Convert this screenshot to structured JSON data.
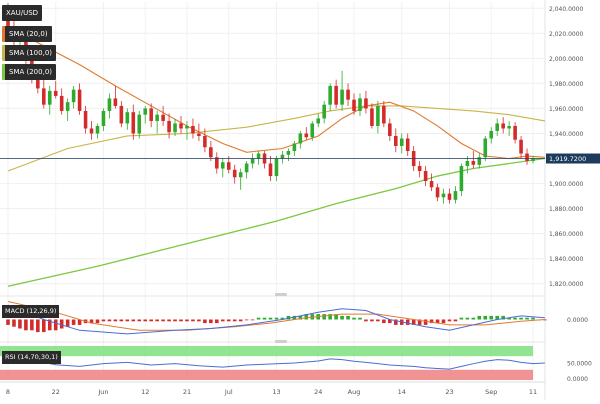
{
  "symbol": "XAU/USD",
  "indicators": {
    "sma20": "SMA (20,0)",
    "sma100": "SMA (100,0)",
    "sma200": "SMA (200,0)",
    "macd": "MACD (12,26,9)",
    "rsi": "RSI (14,70,30,1)"
  },
  "current_price_label": "1,919.7200",
  "macd_zero_label": "0.0000",
  "rsi_labels": [
    "50.0000",
    "0.0000"
  ],
  "colors": {
    "bull": "#2eaa2e",
    "bear": "#d42a2a",
    "sma20": "#e07a2e",
    "sma100": "#c9b545",
    "sma200": "#7ac943",
    "price_line": "#1d3b5c",
    "macd_line": "#4a6cd4",
    "signal_line": "#e07a2e",
    "rsi_line": "#4a6cd4",
    "rsi_upper": "#7ee07e",
    "rsi_lower": "#f08080"
  },
  "chart_data": {
    "type": "candlestick",
    "title": "XAU/USD",
    "x_ticks": [
      "8",
      "22",
      "Jun",
      "12",
      "21",
      "Jul",
      "13",
      "24",
      "Aug",
      "14",
      "23",
      "Sep",
      "11"
    ],
    "y_ticks": [
      "2,040.0000",
      "2,020.0000",
      "2,000.0000",
      "1,980.0000",
      "1,960.0000",
      "1,940.0000",
      "1,920.0000",
      "1,900.0000",
      "1,880.0000",
      "1,860.0000",
      "1,840.0000",
      "1,820.0000"
    ],
    "ylim": [
      1815,
      2045
    ],
    "candles": [
      {
        "o": 2036,
        "h": 2044,
        "l": 2020,
        "c": 2025
      },
      {
        "o": 2025,
        "h": 2032,
        "l": 2010,
        "c": 2014
      },
      {
        "o": 2014,
        "h": 2022,
        "l": 2002,
        "c": 2017
      },
      {
        "o": 2017,
        "h": 2020,
        "l": 1995,
        "c": 1998
      },
      {
        "o": 1998,
        "h": 2005,
        "l": 1980,
        "c": 1983
      },
      {
        "o": 1983,
        "h": 1990,
        "l": 1972,
        "c": 1976
      },
      {
        "o": 1976,
        "h": 1985,
        "l": 1960,
        "c": 1963
      },
      {
        "o": 1963,
        "h": 1978,
        "l": 1955,
        "c": 1974
      },
      {
        "o": 1974,
        "h": 1982,
        "l": 1968,
        "c": 1970
      },
      {
        "o": 1970,
        "h": 1976,
        "l": 1955,
        "c": 1958
      },
      {
        "o": 1958,
        "h": 1968,
        "l": 1950,
        "c": 1965
      },
      {
        "o": 1965,
        "h": 1978,
        "l": 1960,
        "c": 1975
      },
      {
        "o": 1975,
        "h": 1980,
        "l": 1955,
        "c": 1958
      },
      {
        "o": 1958,
        "h": 1962,
        "l": 1940,
        "c": 1944
      },
      {
        "o": 1944,
        "h": 1950,
        "l": 1935,
        "c": 1940
      },
      {
        "o": 1940,
        "h": 1948,
        "l": 1936,
        "c": 1946
      },
      {
        "o": 1946,
        "h": 1960,
        "l": 1942,
        "c": 1958
      },
      {
        "o": 1958,
        "h": 1972,
        "l": 1952,
        "c": 1968
      },
      {
        "o": 1968,
        "h": 1978,
        "l": 1960,
        "c": 1962
      },
      {
        "o": 1962,
        "h": 1966,
        "l": 1945,
        "c": 1948
      },
      {
        "o": 1948,
        "h": 1960,
        "l": 1943,
        "c": 1957
      },
      {
        "o": 1957,
        "h": 1963,
        "l": 1935,
        "c": 1940
      },
      {
        "o": 1940,
        "h": 1958,
        "l": 1936,
        "c": 1955
      },
      {
        "o": 1955,
        "h": 1962,
        "l": 1948,
        "c": 1960
      },
      {
        "o": 1960,
        "h": 1964,
        "l": 1945,
        "c": 1950
      },
      {
        "o": 1950,
        "h": 1958,
        "l": 1940,
        "c": 1955
      },
      {
        "o": 1955,
        "h": 1962,
        "l": 1946,
        "c": 1950
      },
      {
        "o": 1950,
        "h": 1956,
        "l": 1936,
        "c": 1941
      },
      {
        "o": 1941,
        "h": 1952,
        "l": 1938,
        "c": 1948
      },
      {
        "o": 1948,
        "h": 1954,
        "l": 1940,
        "c": 1944
      },
      {
        "o": 1944,
        "h": 1950,
        "l": 1935,
        "c": 1946
      },
      {
        "o": 1946,
        "h": 1952,
        "l": 1936,
        "c": 1940
      },
      {
        "o": 1940,
        "h": 1948,
        "l": 1934,
        "c": 1938
      },
      {
        "o": 1938,
        "h": 1944,
        "l": 1925,
        "c": 1929
      },
      {
        "o": 1929,
        "h": 1934,
        "l": 1918,
        "c": 1921
      },
      {
        "o": 1921,
        "h": 1925,
        "l": 1908,
        "c": 1912
      },
      {
        "o": 1912,
        "h": 1920,
        "l": 1905,
        "c": 1917
      },
      {
        "o": 1917,
        "h": 1922,
        "l": 1908,
        "c": 1911
      },
      {
        "o": 1911,
        "h": 1915,
        "l": 1900,
        "c": 1905
      },
      {
        "o": 1905,
        "h": 1912,
        "l": 1895,
        "c": 1909
      },
      {
        "o": 1909,
        "h": 1918,
        "l": 1904,
        "c": 1916
      },
      {
        "o": 1916,
        "h": 1924,
        "l": 1912,
        "c": 1920
      },
      {
        "o": 1920,
        "h": 1926,
        "l": 1915,
        "c": 1924
      },
      {
        "o": 1924,
        "h": 1926,
        "l": 1912,
        "c": 1916
      },
      {
        "o": 1916,
        "h": 1922,
        "l": 1902,
        "c": 1906
      },
      {
        "o": 1906,
        "h": 1922,
        "l": 1902,
        "c": 1920
      },
      {
        "o": 1920,
        "h": 1926,
        "l": 1916,
        "c": 1923
      },
      {
        "o": 1923,
        "h": 1928,
        "l": 1918,
        "c": 1926
      },
      {
        "o": 1926,
        "h": 1934,
        "l": 1922,
        "c": 1932
      },
      {
        "o": 1932,
        "h": 1942,
        "l": 1928,
        "c": 1940
      },
      {
        "o": 1940,
        "h": 1945,
        "l": 1935,
        "c": 1937
      },
      {
        "o": 1937,
        "h": 1950,
        "l": 1934,
        "c": 1948
      },
      {
        "o": 1948,
        "h": 1956,
        "l": 1945,
        "c": 1952
      },
      {
        "o": 1952,
        "h": 1966,
        "l": 1948,
        "c": 1963
      },
      {
        "o": 1963,
        "h": 1980,
        "l": 1958,
        "c": 1978
      },
      {
        "o": 1978,
        "h": 1983,
        "l": 1960,
        "c": 1963
      },
      {
        "o": 1963,
        "h": 1990,
        "l": 1958,
        "c": 1975
      },
      {
        "o": 1975,
        "h": 1980,
        "l": 1962,
        "c": 1967
      },
      {
        "o": 1967,
        "h": 1972,
        "l": 1955,
        "c": 1958
      },
      {
        "o": 1958,
        "h": 1972,
        "l": 1954,
        "c": 1968
      },
      {
        "o": 1968,
        "h": 1974,
        "l": 1956,
        "c": 1960
      },
      {
        "o": 1960,
        "h": 1964,
        "l": 1944,
        "c": 1946
      },
      {
        "o": 1946,
        "h": 1966,
        "l": 1940,
        "c": 1962
      },
      {
        "o": 1962,
        "h": 1966,
        "l": 1945,
        "c": 1948
      },
      {
        "o": 1948,
        "h": 1952,
        "l": 1934,
        "c": 1938
      },
      {
        "o": 1938,
        "h": 1944,
        "l": 1925,
        "c": 1930
      },
      {
        "o": 1930,
        "h": 1940,
        "l": 1924,
        "c": 1936
      },
      {
        "o": 1936,
        "h": 1940,
        "l": 1922,
        "c": 1926
      },
      {
        "o": 1926,
        "h": 1930,
        "l": 1910,
        "c": 1914
      },
      {
        "o": 1914,
        "h": 1918,
        "l": 1905,
        "c": 1910
      },
      {
        "o": 1910,
        "h": 1914,
        "l": 1898,
        "c": 1902
      },
      {
        "o": 1902,
        "h": 1908,
        "l": 1894,
        "c": 1897
      },
      {
        "o": 1897,
        "h": 1900,
        "l": 1886,
        "c": 1889
      },
      {
        "o": 1889,
        "h": 1896,
        "l": 1884,
        "c": 1892
      },
      {
        "o": 1892,
        "h": 1896,
        "l": 1884,
        "c": 1887
      },
      {
        "o": 1887,
        "h": 1898,
        "l": 1884,
        "c": 1894
      },
      {
        "o": 1894,
        "h": 1916,
        "l": 1890,
        "c": 1914
      },
      {
        "o": 1914,
        "h": 1922,
        "l": 1908,
        "c": 1918
      },
      {
        "o": 1918,
        "h": 1926,
        "l": 1912,
        "c": 1915
      },
      {
        "o": 1915,
        "h": 1924,
        "l": 1912,
        "c": 1921
      },
      {
        "o": 1921,
        "h": 1938,
        "l": 1918,
        "c": 1936
      },
      {
        "o": 1936,
        "h": 1945,
        "l": 1932,
        "c": 1942
      },
      {
        "o": 1942,
        "h": 1952,
        "l": 1938,
        "c": 1948
      },
      {
        "o": 1948,
        "h": 1953,
        "l": 1940,
        "c": 1944
      },
      {
        "o": 1944,
        "h": 1950,
        "l": 1938,
        "c": 1946
      },
      {
        "o": 1946,
        "h": 1949,
        "l": 1932,
        "c": 1935
      },
      {
        "o": 1935,
        "h": 1938,
        "l": 1920,
        "c": 1924
      },
      {
        "o": 1924,
        "h": 1928,
        "l": 1915,
        "c": 1918
      },
      {
        "o": 1918,
        "h": 1922,
        "l": 1916,
        "c": 1920
      }
    ],
    "sma20": [
      [
        0,
        2025
      ],
      [
        6,
        2010
      ],
      [
        12,
        1995
      ],
      [
        18,
        1978
      ],
      [
        24,
        1962
      ],
      [
        30,
        1946
      ],
      [
        36,
        1932
      ],
      [
        40,
        1925
      ],
      [
        46,
        1928
      ],
      [
        52,
        1938
      ],
      [
        56,
        1952
      ],
      [
        60,
        1962
      ],
      [
        64,
        1965
      ],
      [
        68,
        1958
      ],
      [
        72,
        1946
      ],
      [
        76,
        1932
      ],
      [
        80,
        1922
      ],
      [
        84,
        1920
      ],
      [
        87,
        1922
      ],
      [
        90,
        1921
      ]
    ],
    "sma100": [
      [
        0,
        1910
      ],
      [
        10,
        1928
      ],
      [
        20,
        1938
      ],
      [
        30,
        1940
      ],
      [
        40,
        1945
      ],
      [
        48,
        1952
      ],
      [
        54,
        1958
      ],
      [
        60,
        1962
      ],
      [
        66,
        1962
      ],
      [
        72,
        1960
      ],
      [
        78,
        1958
      ],
      [
        84,
        1955
      ],
      [
        90,
        1950
      ]
    ],
    "sma200": [
      [
        0,
        1818
      ],
      [
        15,
        1834
      ],
      [
        30,
        1852
      ],
      [
        45,
        1870
      ],
      [
        55,
        1884
      ],
      [
        65,
        1896
      ],
      [
        72,
        1906
      ],
      [
        78,
        1912
      ],
      [
        84,
        1916
      ],
      [
        90,
        1920
      ]
    ],
    "macd_hist": [
      -3,
      -4,
      -5,
      -6,
      -6,
      -7,
      -7,
      -6,
      -6,
      -5,
      -4,
      -3,
      -3,
      -2,
      -2,
      -2,
      -1,
      -1,
      -1,
      -1,
      -1,
      -1,
      -1,
      -1,
      -1,
      -1,
      -1,
      -1,
      -1,
      -1,
      -1,
      -1,
      -1,
      -2,
      -2,
      -2,
      -1,
      -1,
      -1,
      -1,
      0,
      0,
      1,
      1,
      1,
      1,
      1,
      2,
      2,
      2,
      3,
      3,
      3,
      3,
      3,
      3,
      2,
      2,
      1,
      1,
      -1,
      -1,
      -1,
      -2,
      -2,
      -3,
      -3,
      -3,
      -3,
      -3,
      -3,
      -2,
      -2,
      -2,
      -1,
      -1,
      1,
      1,
      1,
      2,
      2,
      2,
      2,
      2,
      1,
      1,
      1,
      1,
      1,
      0,
      0
    ],
    "macd_line": [
      [
        0,
        8
      ],
      [
        6,
        0
      ],
      [
        12,
        -6
      ],
      [
        20,
        -8
      ],
      [
        28,
        -6
      ],
      [
        34,
        -5
      ],
      [
        40,
        -3
      ],
      [
        46,
        0
      ],
      [
        52,
        4
      ],
      [
        56,
        6
      ],
      [
        60,
        5
      ],
      [
        64,
        0
      ],
      [
        70,
        -4
      ],
      [
        74,
        -6
      ],
      [
        78,
        -3
      ],
      [
        82,
        0
      ],
      [
        86,
        2
      ],
      [
        90,
        1
      ]
    ],
    "signal_line": [
      [
        0,
        10
      ],
      [
        8,
        4
      ],
      [
        14,
        -2
      ],
      [
        22,
        -6
      ],
      [
        30,
        -6
      ],
      [
        38,
        -4
      ],
      [
        44,
        -2
      ],
      [
        50,
        1
      ],
      [
        56,
        3
      ],
      [
        62,
        3
      ],
      [
        68,
        0
      ],
      [
        74,
        -3
      ],
      [
        80,
        -3
      ],
      [
        86,
        -1
      ],
      [
        90,
        0
      ]
    ],
    "rsi": [
      [
        0,
        70
      ],
      [
        4,
        58
      ],
      [
        8,
        45
      ],
      [
        12,
        40
      ],
      [
        16,
        48
      ],
      [
        20,
        52
      ],
      [
        24,
        44
      ],
      [
        28,
        48
      ],
      [
        32,
        42
      ],
      [
        36,
        38
      ],
      [
        40,
        44
      ],
      [
        44,
        47
      ],
      [
        48,
        50
      ],
      [
        52,
        56
      ],
      [
        54,
        62
      ],
      [
        56,
        60
      ],
      [
        58,
        55
      ],
      [
        60,
        52
      ],
      [
        62,
        48
      ],
      [
        64,
        44
      ],
      [
        66,
        42
      ],
      [
        68,
        40
      ],
      [
        70,
        36
      ],
      [
        72,
        34
      ],
      [
        74,
        32
      ],
      [
        76,
        40
      ],
      [
        78,
        48
      ],
      [
        80,
        55
      ],
      [
        82,
        60
      ],
      [
        84,
        58
      ],
      [
        86,
        52
      ],
      [
        88,
        48
      ],
      [
        90,
        50
      ]
    ]
  }
}
